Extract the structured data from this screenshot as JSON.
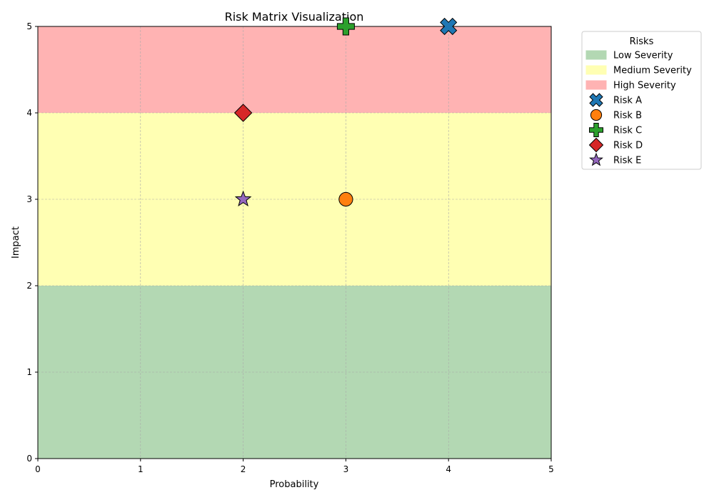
{
  "chart_data": {
    "type": "scatter",
    "title": "Risk Matrix Visualization",
    "xlabel": "Probability",
    "ylabel": "Impact",
    "xlim": [
      0,
      5
    ],
    "ylim": [
      0,
      5
    ],
    "xticks": [
      "0",
      "1",
      "2",
      "3",
      "4",
      "5"
    ],
    "yticks": [
      "0",
      "1",
      "2",
      "3",
      "4",
      "5"
    ],
    "grid": true,
    "legend": {
      "title": "Risks",
      "placement": "outside-upper-right"
    },
    "bands": [
      {
        "name": "Low Severity",
        "y_from": 0,
        "y_to": 2,
        "color": "#b3d8b3"
      },
      {
        "name": "Medium Severity",
        "y_from": 2,
        "y_to": 4,
        "color": "#ffffb3"
      },
      {
        "name": "High Severity",
        "y_from": 4,
        "y_to": 5,
        "color": "#ffb3b3"
      }
    ],
    "series": [
      {
        "name": "Risk A",
        "x": 4,
        "y": 5,
        "marker": "x-filled",
        "color": "#1f77b4"
      },
      {
        "name": "Risk B",
        "x": 3,
        "y": 3,
        "marker": "circle",
        "color": "#ff7f0e"
      },
      {
        "name": "Risk C",
        "x": 3,
        "y": 5,
        "marker": "plus-filled",
        "color": "#2ca02c"
      },
      {
        "name": "Risk D",
        "x": 2,
        "y": 4,
        "marker": "diamond",
        "color": "#d62728"
      },
      {
        "name": "Risk E",
        "x": 2,
        "y": 3,
        "marker": "star",
        "color": "#9467bd"
      }
    ]
  }
}
